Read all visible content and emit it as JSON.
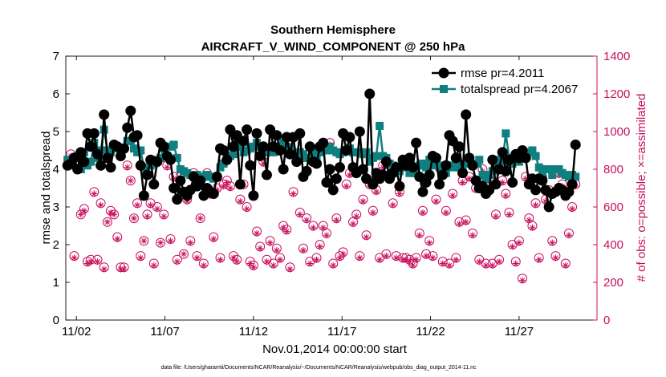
{
  "chart_data": {
    "type": "line",
    "title": "Southern Hemisphere",
    "subtitle": "AIRCRAFT_V_WIND_COMPONENT @ 250 hPa",
    "xlabel": "Nov.01,2014 00:00:00 start",
    "ylabel": "rmse and totalspread",
    "ylabel_right": "# of obs: o=possible; ×=assimilated",
    "footnote": "data file: /Users/gharamti/Documents/NCAR/Reanalysis/~/Documents/NCAR/Reanalysis/webpub/obs_diag_output_2014-11.nc",
    "x_ticks": [
      {
        "day": 2,
        "label": "11/02"
      },
      {
        "day": 7,
        "label": "11/07"
      },
      {
        "day": 12,
        "label": "11/12"
      },
      {
        "day": 17,
        "label": "11/17"
      },
      {
        "day": 22,
        "label": "11/22"
      },
      {
        "day": 27,
        "label": "11/27"
      }
    ],
    "xlim_days": [
      1.4,
      31.4
    ],
    "ylim": [
      0,
      7
    ],
    "yticks": [
      "0",
      "1",
      "2",
      "3",
      "4",
      "5",
      "6",
      "7"
    ],
    "ylim_right": [
      0,
      1400
    ],
    "yticks_right": [
      "0",
      "200",
      "400",
      "600",
      "800",
      "1000",
      "1200",
      "1400"
    ],
    "grid": false,
    "legend_position": "top-right",
    "colors": {
      "rmse": "#000000",
      "totalspread": "#0f7f80",
      "obs": "#c8105e"
    },
    "series": [
      {
        "name": "rmse pr=4.2011",
        "values": [
          4.1,
          4.15,
          4.3,
          4.0,
          4.45,
          4.2,
          4.95,
          4.6,
          4.95,
          4.4,
          4.1,
          5.45,
          4.3,
          4.05,
          4.65,
          4.6,
          4.35,
          4.55,
          5.1,
          5.55,
          4.85,
          4.9,
          4.1,
          3.3,
          3.85,
          4.25,
          3.6,
          4.2,
          4.7,
          4.6,
          4.35,
          4.25,
          3.5,
          3.2,
          3.7,
          3.4,
          3.3,
          3.45,
          3.8,
          3.55,
          3.7,
          3.3,
          3.5,
          3.4,
          3.35,
          3.8,
          4.55,
          4.5,
          4.25,
          5.05,
          4.6,
          4.9,
          3.6,
          4.75,
          5.05,
          4.1,
          3.3,
          4.95,
          4.35,
          4.6,
          3.85,
          5.05,
          4.6,
          4.9,
          4.5,
          4.0,
          4.85,
          4.4,
          4.85,
          4.2,
          4.95,
          3.8,
          3.95,
          4.6,
          4.2,
          4.15,
          4.6,
          4.7,
          3.65,
          4.0,
          3.45,
          3.75,
          4.05,
          4.95,
          4.5,
          4.85,
          4.05,
          3.9,
          5.0,
          4.0,
          3.75,
          6.0,
          3.6,
          3.9,
          3.75,
          3.85,
          4.2,
          3.75,
          3.9,
          4.05,
          3.55,
          4.25,
          4.1,
          4.3,
          4.05,
          4.7,
          3.8,
          3.4,
          3.65,
          3.85,
          4.35,
          4.3,
          3.6,
          3.85,
          4.1,
          4.9,
          4.75,
          4.3,
          4.6,
          3.9,
          5.45,
          4.3,
          4.1,
          3.7,
          3.5,
          3.55,
          3.35,
          3.45,
          4.25,
          3.6,
          4.0,
          4.45,
          3.95,
          4.25,
          3.65,
          4.4,
          4.3,
          4.5,
          4.3,
          3.6,
          3.75,
          3.45,
          3.75,
          3.7,
          3.45,
          3.0,
          3.35,
          3.4,
          3.5,
          3.45,
          3.3,
          3.4,
          3.6,
          4.65
        ]
      },
      {
        "name": "totalspread pr=4.2067",
        "values": [
          4.25,
          4.1,
          4.3,
          4.35,
          4.0,
          4.45,
          4.1,
          4.2,
          4.7,
          4.3,
          4.5,
          5.05,
          4.5,
          4.45,
          4.6,
          4.55,
          4.5,
          4.55,
          4.75,
          4.75,
          4.55,
          4.45,
          4.5,
          4.05,
          3.85,
          4.1,
          4.15,
          4.25,
          4.3,
          4.55,
          4.6,
          4.6,
          4.65,
          4.3,
          4.0,
          3.95,
          3.9,
          3.85,
          3.85,
          3.85,
          3.8,
          3.8,
          3.85,
          3.8,
          3.75,
          3.8,
          4.05,
          4.15,
          4.3,
          4.35,
          4.4,
          4.75,
          4.6,
          4.45,
          4.5,
          4.55,
          4.6,
          4.7,
          4.6,
          4.5,
          4.45,
          4.5,
          4.45,
          4.55,
          4.6,
          4.7,
          4.6,
          4.55,
          4.4,
          4.35,
          4.45,
          4.4,
          4.3,
          4.3,
          4.5,
          4.35,
          4.45,
          4.5,
          4.5,
          4.6,
          4.5,
          4.45,
          4.4,
          4.45,
          4.5,
          4.55,
          4.45,
          4.45,
          4.45,
          4.4,
          4.45,
          4.2,
          4.3,
          4.35,
          5.15,
          4.35,
          4.3,
          4.15,
          4.1,
          4.0,
          3.95,
          4.05,
          4.1,
          3.9,
          3.9,
          3.9,
          4.1,
          4.15,
          4.05,
          4.25,
          4.1,
          4.2,
          4.05,
          4.1,
          3.9,
          4.1,
          4.05,
          4.1,
          4.05,
          4.1,
          4.15,
          4.3,
          4.1,
          4.15,
          4.25,
          3.85,
          3.75,
          3.85,
          3.95,
          4.1,
          4.25,
          4.2,
          4.95,
          4.3,
          4.15,
          4.25,
          4.2,
          4.3,
          4.35,
          4.45,
          4.5,
          4.35,
          4.05,
          3.85,
          4.0,
          4.0,
          3.85,
          4.0,
          4.0,
          3.9,
          3.85,
          3.8,
          3.85,
          3.8,
          3.85,
          3.95,
          3.9,
          3.85
        ]
      },
      {
        "name": "obs possible",
        "axis": "right",
        "values": [
          820,
          880,
          340,
          800,
          560,
          590,
          310,
          320,
          680,
          320,
          620,
          280,
          520,
          580,
          560,
          440,
          280,
          280,
          820,
          740,
          540,
          620,
          340,
          420,
          560,
          620,
          300,
          600,
          410,
          560,
          820,
          430,
          760,
          320,
          760,
          350,
          640,
          420,
          780,
          340,
          540,
          300,
          780,
          670,
          440,
          700,
          330,
          720,
          740,
          710,
          340,
          320,
          640,
          720,
          600,
          310,
          290,
          470,
          390,
          840,
          320,
          420,
          300,
          380,
          330,
          500,
          480,
          280,
          680,
          840,
          570,
          380,
          540,
          310,
          500,
          330,
          400,
          500,
          460,
          940,
          300,
          540,
          340,
          360,
          720,
          780,
          520,
          560,
          340,
          640,
          450,
          720,
          580,
          690,
          330,
          820,
          350,
          770,
          620,
          340,
          680,
          330,
          330,
          320,
          300,
          330,
          460,
          580,
          350,
          420,
          340,
          640,
          720,
          310,
          580,
          300,
          670,
          330,
          520,
          740,
          530,
          760,
          460,
          700,
          320,
          800,
          300,
          750,
          300,
          560,
          320,
          740,
          670,
          570,
          400,
          310,
          420,
          220,
          760,
          540,
          500,
          620,
          330,
          760,
          640,
          690,
          420,
          340,
          780,
          720,
          300,
          460,
          600,
          720,
          340,
          430
        ]
      },
      {
        "name": "obs assimilated",
        "axis": "right",
        "values": [
          810,
          870,
          330,
          800,
          560,
          580,
          300,
          310,
          670,
          310,
          610,
          270,
          520,
          570,
          560,
          430,
          270,
          270,
          810,
          740,
          540,
          610,
          330,
          420,
          550,
          610,
          290,
          590,
          410,
          550,
          810,
          420,
          750,
          310,
          750,
          350,
          630,
          410,
          770,
          330,
          540,
          290,
          770,
          660,
          430,
          690,
          320,
          710,
          730,
          700,
          330,
          310,
          630,
          710,
          590,
          300,
          280,
          460,
          380,
          830,
          310,
          410,
          290,
          370,
          320,
          490,
          470,
          270,
          670,
          830,
          560,
          370,
          530,
          300,
          490,
          320,
          390,
          490,
          450,
          930,
          290,
          530,
          330,
          350,
          710,
          770,
          510,
          550,
          330,
          630,
          440,
          710,
          570,
          680,
          320,
          810,
          340,
          760,
          610,
          330,
          670,
          320,
          320,
          310,
          290,
          320,
          450,
          570,
          340,
          410,
          330,
          630,
          710,
          300,
          570,
          290,
          660,
          320,
          510,
          730,
          520,
          750,
          450,
          690,
          310,
          790,
          290,
          740,
          290,
          550,
          310,
          730,
          660,
          560,
          390,
          300,
          410,
          210,
          750,
          530,
          490,
          610,
          320,
          750,
          630,
          680,
          410,
          330,
          770,
          710,
          290,
          450,
          590,
          710,
          330,
          420
        ]
      }
    ]
  }
}
